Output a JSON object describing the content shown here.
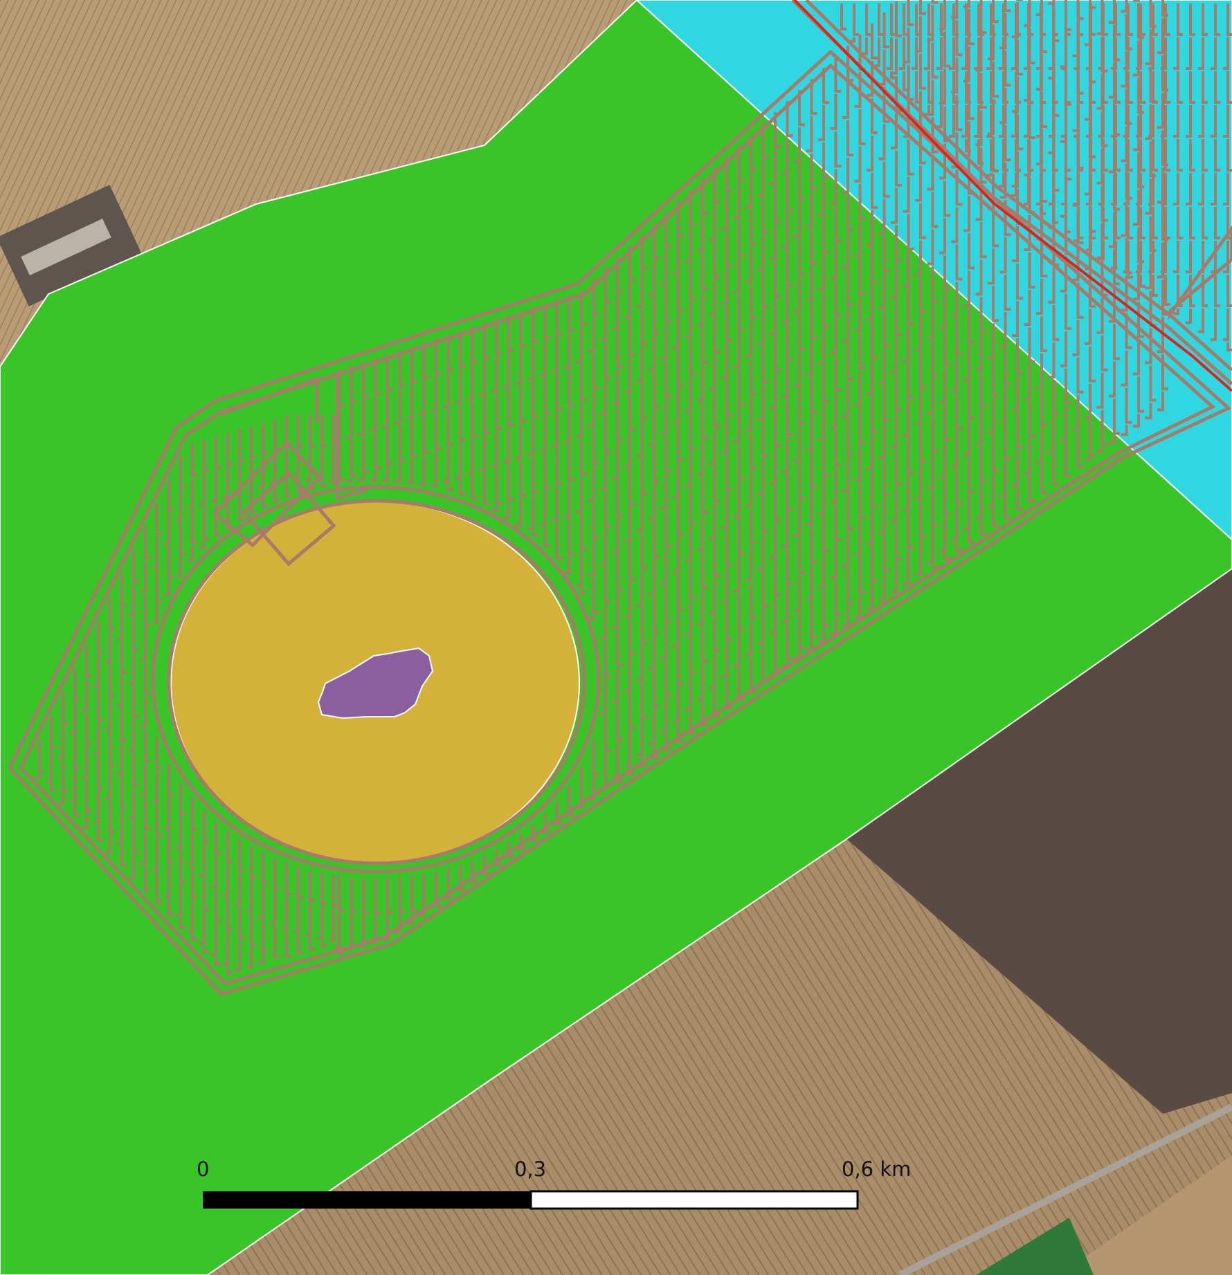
{
  "map": {
    "colors": {
      "buffer_zone": "#39c527",
      "adjacent_zone": "#2fd8e0",
      "crater_zone": "#d4b23a",
      "core_zone": "#8a5e9f",
      "layout_lines": "#a87a6a",
      "red_line": "#e0221b",
      "field_dark": "#594a44",
      "field_light": "#9c8369",
      "field_wheat": "#b49670",
      "field_green": "#2f7a3a"
    }
  },
  "scale_bar": {
    "label_start": "0",
    "label_mid": "0,3",
    "label_end": "0,6 km"
  }
}
